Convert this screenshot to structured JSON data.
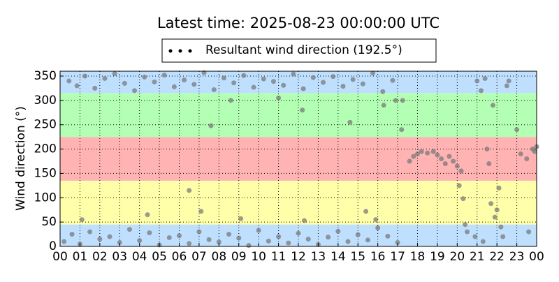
{
  "chart_data": {
    "type": "scatter",
    "title": "Latest time: 2025-08-23 00:00:00 UTC",
    "y_label": "Wind direction (°)",
    "xlim": [
      0,
      24
    ],
    "ylim": [
      0,
      360
    ],
    "xticks": [
      {
        "value": 0,
        "label": "00"
      },
      {
        "value": 1,
        "label": "01"
      },
      {
        "value": 2,
        "label": "02"
      },
      {
        "value": 3,
        "label": "03"
      },
      {
        "value": 4,
        "label": "04"
      },
      {
        "value": 5,
        "label": "05"
      },
      {
        "value": 6,
        "label": "06"
      },
      {
        "value": 7,
        "label": "07"
      },
      {
        "value": 8,
        "label": "08"
      },
      {
        "value": 9,
        "label": "09"
      },
      {
        "value": 10,
        "label": "10"
      },
      {
        "value": 11,
        "label": "11"
      },
      {
        "value": 12,
        "label": "12"
      },
      {
        "value": 13,
        "label": "13"
      },
      {
        "value": 14,
        "label": "14"
      },
      {
        "value": 15,
        "label": "15"
      },
      {
        "value": 16,
        "label": "16"
      },
      {
        "value": 17,
        "label": "17"
      },
      {
        "value": 18,
        "label": "18"
      },
      {
        "value": 19,
        "label": "19"
      },
      {
        "value": 20,
        "label": "20"
      },
      {
        "value": 21,
        "label": "21"
      },
      {
        "value": 22,
        "label": "22"
      },
      {
        "value": 23,
        "label": "23"
      },
      {
        "value": 24,
        "label": "00"
      }
    ],
    "yticks": [
      0,
      50,
      100,
      150,
      200,
      250,
      300,
      350
    ],
    "grid": true,
    "bands": [
      {
        "from": 0,
        "to": 45,
        "color": "#bfdfff"
      },
      {
        "from": 45,
        "to": 135,
        "color": "#ffffaa"
      },
      {
        "from": 135,
        "to": 225,
        "color": "#ffb3b3"
      },
      {
        "from": 225,
        "to": 315,
        "color": "#b3ffb3"
      },
      {
        "from": 315,
        "to": 360,
        "color": "#bfdfff"
      }
    ],
    "series": [
      {
        "name": "Resultant wind direction (192.5°)",
        "color": "#7a7a7a",
        "x": [
          0.2,
          0.6,
          1.0,
          1.5,
          2.0,
          2.5,
          3.0,
          3.5,
          4.0,
          4.5,
          5.0,
          5.5,
          6.0,
          6.5,
          7.0,
          7.5,
          8.0,
          8.5,
          9.0,
          9.5,
          10.0,
          10.5,
          11.0,
          11.5,
          12.0,
          12.5,
          13.0,
          13.5,
          14.0,
          14.5,
          15.0,
          15.5,
          16.0,
          16.5,
          17.0,
          0.45,
          0.85,
          1.25,
          1.75,
          2.25,
          2.75,
          3.25,
          3.75,
          4.25,
          4.75,
          5.25,
          5.75,
          6.25,
          6.75,
          7.25,
          7.75,
          8.25,
          8.75,
          9.25,
          9.75,
          10.25,
          10.75,
          11.25,
          11.75,
          12.25,
          12.75,
          13.25,
          13.75,
          14.25,
          14.75,
          15.25,
          15.75,
          16.25,
          16.75,
          17.25,
          1.1,
          4.4,
          6.5,
          7.1,
          7.6,
          9.1,
          12.2,
          14.6,
          15.4,
          16.3,
          16.9,
          17.2,
          8.6,
          11.0,
          12.3,
          15.9,
          17.6,
          17.8,
          18.0,
          18.2,
          18.5,
          18.8,
          19.0,
          19.2,
          19.4,
          19.6,
          19.8,
          20.0,
          20.2,
          20.1,
          20.3,
          20.4,
          20.5,
          20.9,
          21.0,
          21.2,
          21.4,
          21.5,
          21.6,
          21.7,
          21.8,
          21.9,
          22.0,
          22.1,
          22.2,
          22.3,
          22.5,
          23.0,
          23.2,
          23.5,
          23.6,
          23.8,
          24.0,
          23.9,
          22.6,
          21.3
        ],
        "values": [
          10,
          25,
          5,
          30,
          15,
          20,
          8,
          35,
          12,
          28,
          3,
          18,
          22,
          6,
          30,
          14,
          9,
          25,
          17,
          2,
          33,
          11,
          20,
          7,
          27,
          15,
          4,
          19,
          31,
          10,
          24,
          13,
          38,
          21,
          8,
          340,
          330,
          350,
          325,
          345,
          355,
          335,
          320,
          348,
          338,
          352,
          328,
          342,
          333,
          357,
          322,
          346,
          336,
          351,
          327,
          344,
          339,
          331,
          354,
          324,
          347,
          337,
          349,
          329,
          343,
          334,
          356,
          318,
          341,
          300,
          55,
          65,
          115,
          72,
          248,
          57,
          280,
          255,
          72,
          290,
          300,
          240,
          300,
          305,
          53,
          55,
          175,
          185,
          190,
          195,
          192,
          195,
          188,
          180,
          170,
          185,
          175,
          165,
          155,
          125,
          98,
          45,
          30,
          20,
          340,
          320,
          345,
          200,
          170,
          88,
          290,
          60,
          75,
          120,
          40,
          20,
          330,
          240,
          190,
          180,
          30,
          200,
          205,
          195,
          340,
          10
        ]
      }
    ]
  }
}
